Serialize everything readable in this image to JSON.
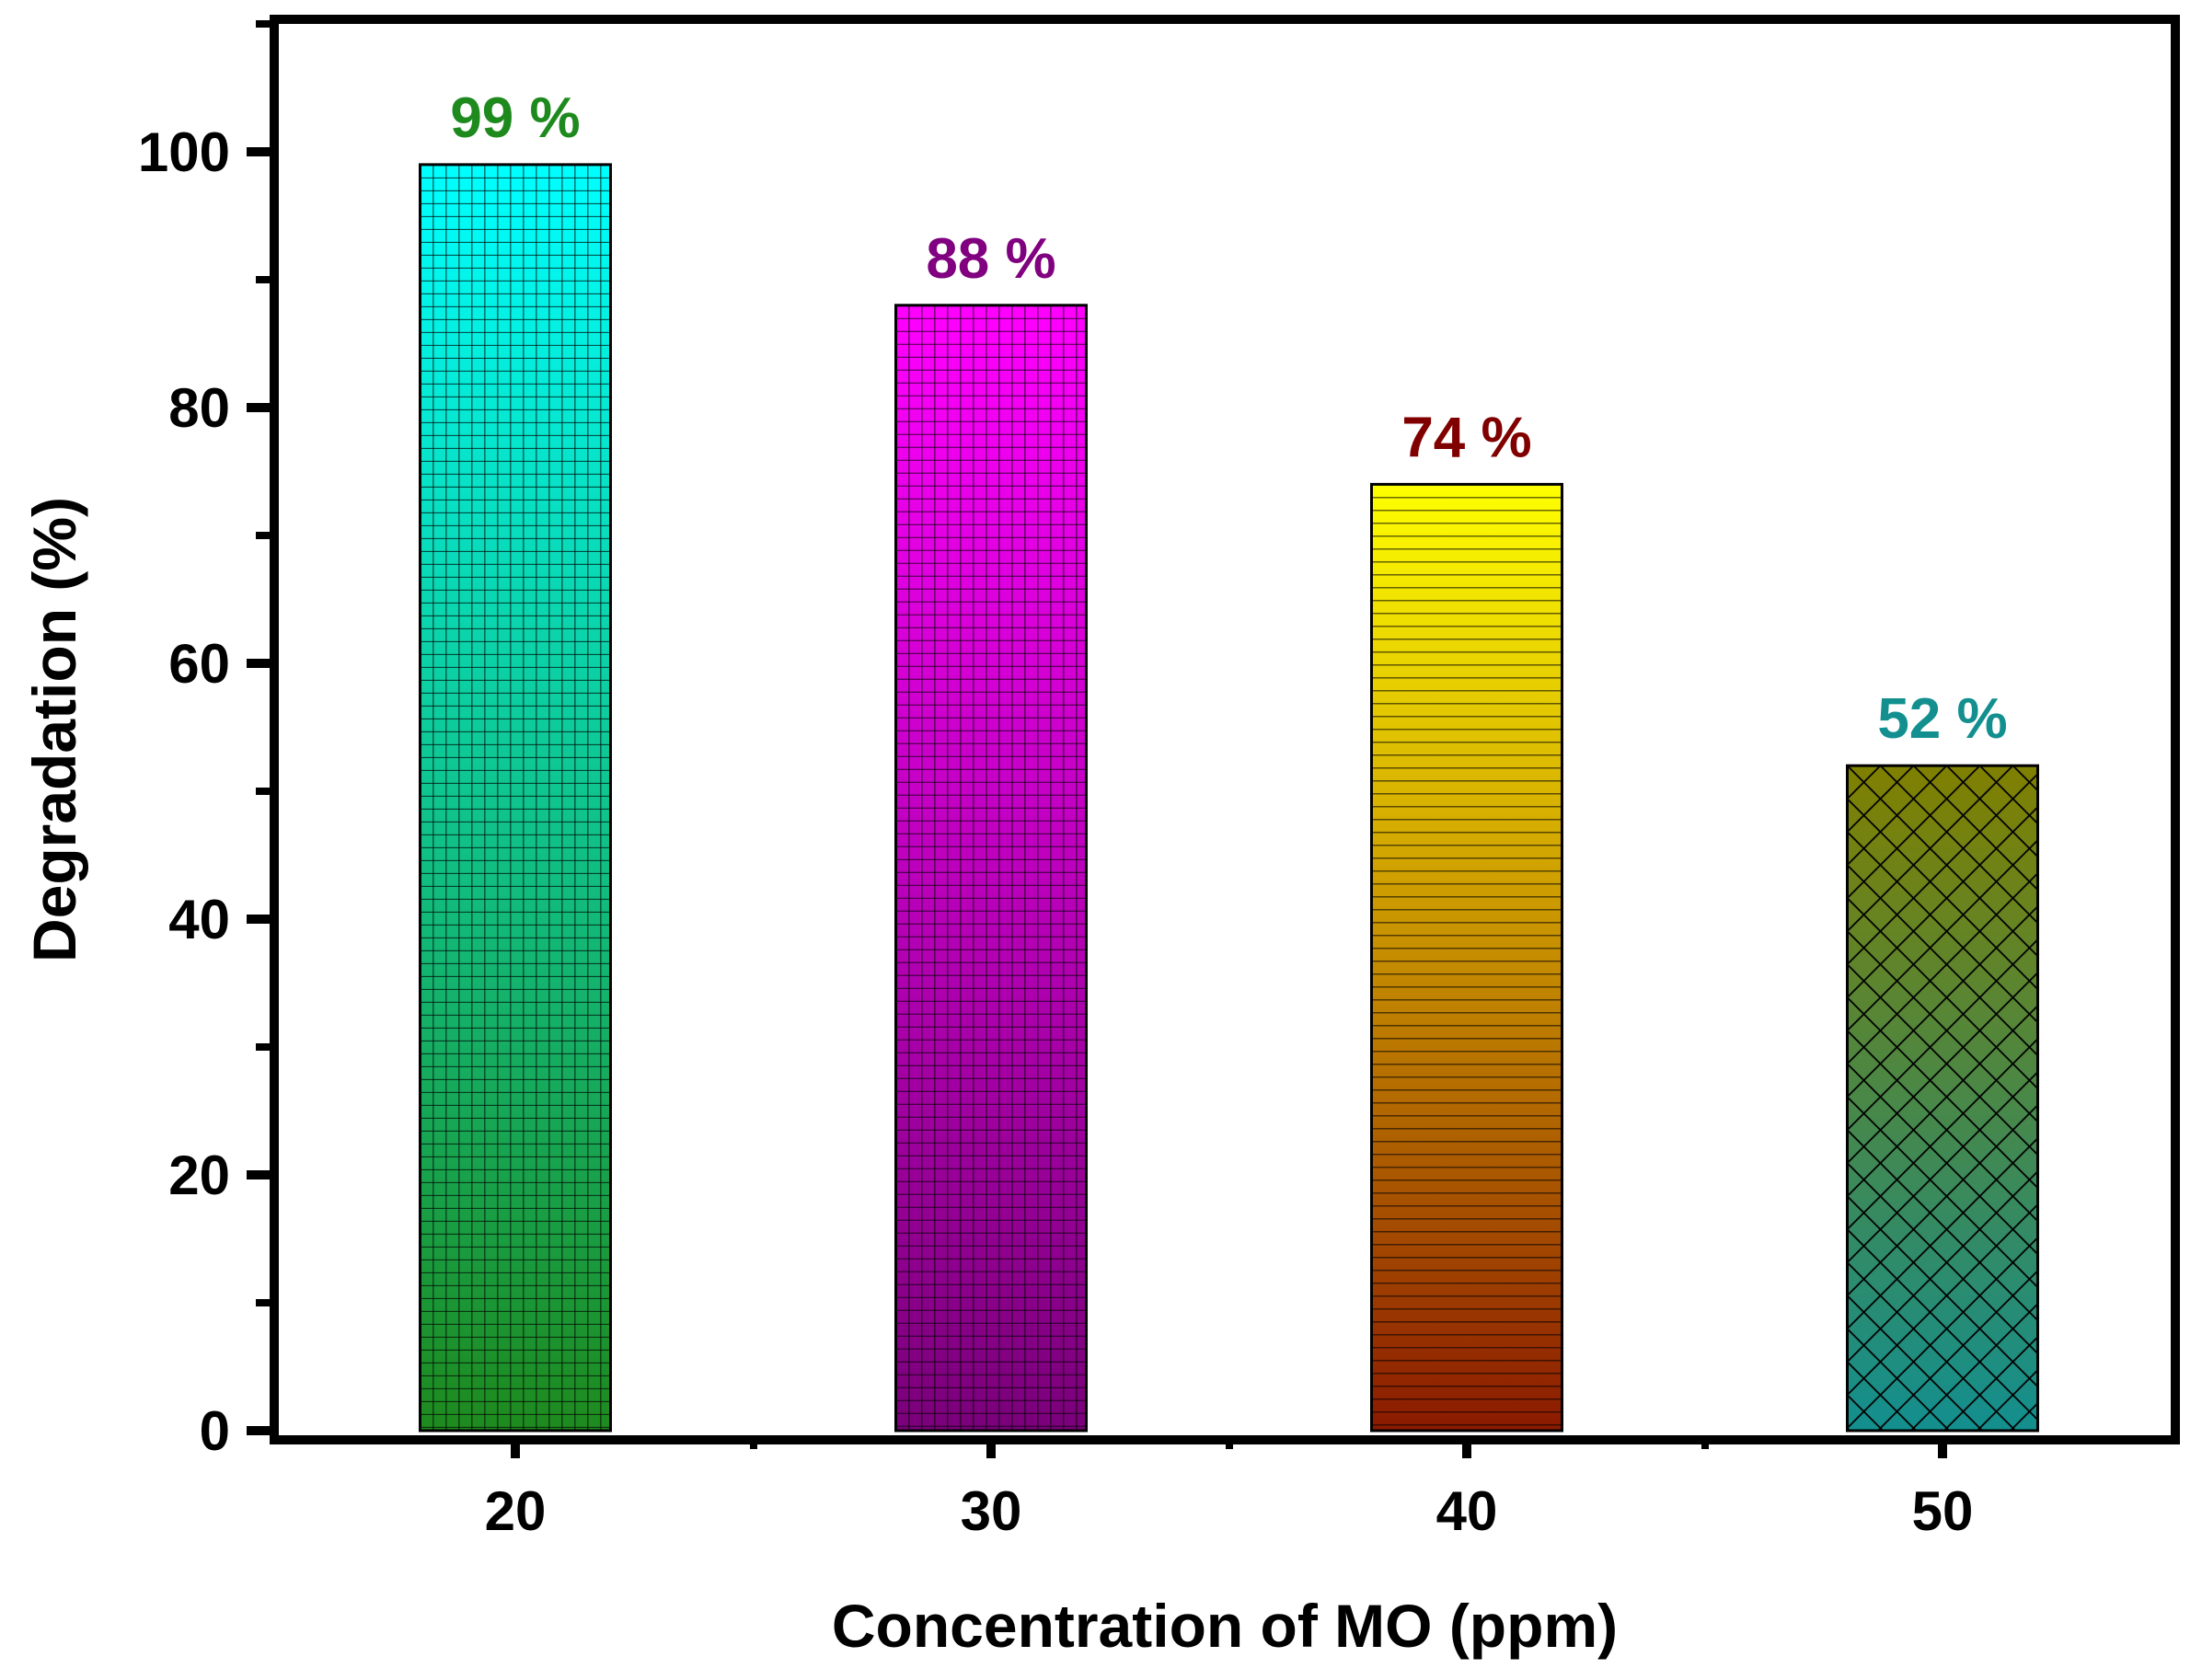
{
  "chart_data": {
    "type": "bar",
    "xlabel": "Concentration of MO (ppm)",
    "ylabel": "Degradation (%)",
    "categories": [
      "20",
      "30",
      "40",
      "50"
    ],
    "values": [
      99,
      88,
      74,
      52
    ],
    "data_labels": [
      "99 %",
      "88 %",
      "74 %",
      "52 %"
    ],
    "ylim": [
      0,
      110
    ],
    "yticks": [
      "0",
      "20",
      "40",
      "60",
      "80",
      "100"
    ],
    "grid": false,
    "legend": "none",
    "bars": [
      {
        "pattern": "grid",
        "color_top": "#00ffff",
        "color_bottom": "#1e8a1e",
        "label_color": "#1e8a1e"
      },
      {
        "pattern": "grid",
        "color_top": "#ff00ff",
        "color_bottom": "#7a007a",
        "label_color": "#800080"
      },
      {
        "pattern": "horizontal-lines",
        "color_top": "#ffff00",
        "color_bottom": "#8b1a00",
        "label_color": "#800000"
      },
      {
        "pattern": "crosshatch",
        "color_top": "#808000",
        "color_bottom": "#138f8f",
        "label_color": "#138f8f"
      }
    ]
  }
}
